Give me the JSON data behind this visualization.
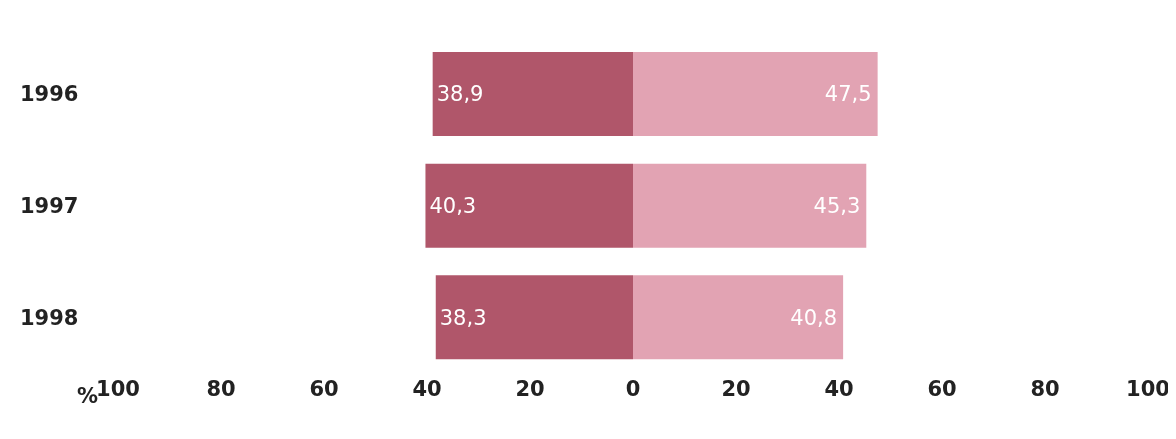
{
  "chart_data": {
    "type": "bar",
    "orientation": "horizontal",
    "categories": [
      "1996",
      "1997",
      "1998"
    ],
    "xlabel": "%",
    "xlim": [
      -100,
      100
    ],
    "xticks": [
      {
        "value": -100,
        "label": "100"
      },
      {
        "value": -80,
        "label": "80"
      },
      {
        "value": -60,
        "label": "60"
      },
      {
        "value": -40,
        "label": "40"
      },
      {
        "value": -20,
        "label": "20"
      },
      0,
      20,
      40,
      60,
      80,
      100
    ],
    "series": [
      {
        "color": "#b0566a",
        "values": [
          38.9,
          40.3,
          38.3
        ],
        "base": [
          -38.9,
          -40.3,
          -38.3
        ],
        "value_labels": [
          "38,9",
          "40,3",
          "38,3"
        ]
      },
      {
        "color": "#e2a3b3",
        "values": [
          47.5,
          45.3,
          40.8
        ],
        "value_labels": [
          "47,5",
          "45,3",
          "40,8"
        ]
      }
    ]
  }
}
